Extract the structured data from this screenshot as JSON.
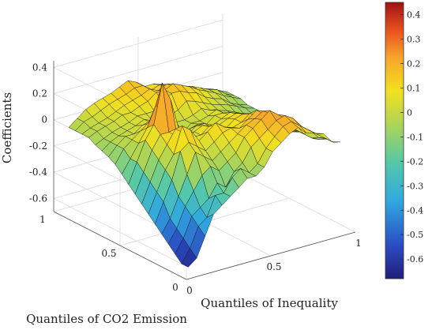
{
  "chart_data": {
    "type": "surface",
    "zlabel": "Coefficients",
    "xlabel": "Quantiles of Inequality",
    "ylabel": "Quantiles of CO2 Emission",
    "x_ticks": [
      "0",
      "0.5",
      "1"
    ],
    "y_ticks": [
      "0",
      "0.5",
      "1"
    ],
    "z_ticks": [
      "-0.6",
      "-0.4",
      "-0.2",
      "0",
      "0.2",
      "0.4"
    ],
    "zlim": [
      -0.7,
      0.45
    ],
    "colorbar": {
      "colormap": "jet",
      "range": [
        -0.68,
        0.45
      ],
      "ticks": [
        "0.4",
        "0.3",
        "0.2",
        "0.1",
        "0",
        "-0.1",
        "-0.2",
        "-0.3",
        "-0.4",
        "-0.5",
        "-0.6"
      ]
    },
    "grid": true,
    "x": [
      0.05,
      0.1,
      0.15,
      0.2,
      0.25,
      0.3,
      0.35,
      0.4,
      0.45,
      0.5,
      0.55,
      0.6,
      0.65,
      0.7,
      0.75,
      0.8,
      0.85,
      0.9,
      0.95
    ],
    "y": [
      0.05,
      0.1,
      0.15,
      0.2,
      0.25,
      0.3,
      0.35,
      0.4,
      0.45,
      0.5,
      0.55,
      0.6,
      0.65,
      0.7,
      0.75,
      0.8,
      0.85,
      0.9,
      0.95
    ],
    "z_note": "approximate surface values by row (y) over columns (x)",
    "z": [
      [
        -0.65,
        -0.6,
        -0.45,
        -0.3,
        -0.25,
        -0.2,
        -0.15,
        -0.1,
        -0.1,
        -0.05,
        0.05,
        0.1,
        0.15,
        0.18,
        0.12,
        0.1,
        0.08,
        0.0,
        -0.02
      ],
      [
        -0.65,
        -0.55,
        -0.4,
        -0.35,
        -0.2,
        -0.2,
        -0.1,
        -0.05,
        -0.1,
        -0.05,
        0.05,
        0.12,
        0.18,
        0.2,
        0.15,
        0.1,
        0.05,
        0.0,
        -0.05
      ],
      [
        -0.6,
        -0.5,
        -0.35,
        -0.3,
        -0.25,
        -0.15,
        -0.2,
        -0.1,
        -0.05,
        0.05,
        0.1,
        0.15,
        0.2,
        0.22,
        0.18,
        0.1,
        0.05,
        -0.02,
        -0.05
      ],
      [
        -0.55,
        -0.45,
        -0.3,
        -0.2,
        -0.1,
        -0.05,
        -0.1,
        -0.05,
        0.0,
        0.1,
        0.15,
        0.2,
        0.25,
        0.2,
        0.15,
        0.1,
        0.0,
        -0.05,
        -0.08
      ],
      [
        -0.5,
        -0.4,
        -0.25,
        -0.1,
        0.05,
        0.0,
        -0.05,
        0.0,
        0.05,
        0.1,
        0.15,
        0.18,
        0.22,
        0.18,
        0.12,
        0.08,
        0.0,
        -0.05,
        -0.1
      ],
      [
        -0.45,
        -0.3,
        -0.15,
        0.05,
        0.1,
        0.05,
        0.0,
        0.05,
        0.1,
        0.12,
        0.1,
        0.15,
        0.2,
        0.15,
        0.1,
        0.05,
        -0.02,
        -0.05,
        -0.1
      ],
      [
        -0.4,
        -0.25,
        -0.1,
        0.0,
        0.2,
        0.15,
        0.05,
        0.1,
        0.15,
        0.1,
        0.08,
        0.1,
        0.15,
        0.12,
        0.08,
        0.02,
        -0.05,
        -0.08,
        -0.1
      ],
      [
        -0.35,
        -0.2,
        -0.05,
        0.05,
        0.15,
        0.1,
        0.05,
        0.05,
        0.1,
        0.08,
        0.05,
        0.1,
        0.12,
        0.1,
        0.05,
        0.0,
        -0.05,
        -0.1,
        -0.12
      ],
      [
        -0.3,
        -0.15,
        0.0,
        0.1,
        0.1,
        0.05,
        0.0,
        0.05,
        0.08,
        0.05,
        0.05,
        0.08,
        0.1,
        0.08,
        0.02,
        0.0,
        -0.05,
        -0.1,
        -0.12
      ],
      [
        -0.25,
        -0.1,
        0.05,
        0.15,
        0.45,
        0.3,
        0.05,
        0.0,
        0.05,
        0.05,
        0.02,
        0.05,
        0.08,
        0.05,
        0.0,
        -0.02,
        -0.08,
        -0.1,
        -0.12
      ],
      [
        -0.2,
        -0.1,
        0.0,
        0.1,
        0.25,
        0.2,
        0.1,
        0.0,
        0.0,
        0.02,
        0.0,
        0.05,
        0.05,
        0.02,
        0.0,
        -0.05,
        -0.08,
        -0.1,
        -0.12
      ],
      [
        -0.15,
        -0.05,
        0.0,
        0.05,
        0.1,
        0.1,
        0.05,
        0.0,
        -0.05,
        0.0,
        0.0,
        0.02,
        0.05,
        0.0,
        -0.02,
        -0.05,
        -0.08,
        -0.1,
        -0.12
      ],
      [
        -0.12,
        -0.05,
        0.0,
        0.0,
        0.05,
        0.05,
        0.05,
        0.02,
        0.0,
        0.0,
        0.02,
        0.05,
        0.02,
        0.0,
        -0.02,
        -0.05,
        -0.08,
        -0.1,
        -0.1
      ],
      [
        -0.1,
        -0.05,
        -0.02,
        0.0,
        0.02,
        0.05,
        0.02,
        0.0,
        0.02,
        0.05,
        0.1,
        0.08,
        0.05,
        0.02,
        0.0,
        -0.02,
        -0.05,
        -0.08,
        -0.1
      ],
      [
        -0.08,
        -0.05,
        -0.02,
        0.0,
        0.02,
        0.05,
        0.05,
        0.05,
        0.1,
        0.15,
        0.15,
        0.12,
        0.1,
        0.05,
        0.02,
        0.0,
        -0.05,
        -0.08,
        -0.1
      ],
      [
        -0.05,
        -0.02,
        0.0,
        0.02,
        0.05,
        0.05,
        0.08,
        0.1,
        0.15,
        0.15,
        0.18,
        0.15,
        0.12,
        0.08,
        0.05,
        0.02,
        -0.02,
        -0.05,
        -0.08
      ],
      [
        -0.05,
        -0.02,
        0.0,
        0.02,
        0.05,
        0.08,
        0.1,
        0.12,
        0.15,
        0.12,
        0.15,
        0.12,
        0.1,
        0.08,
        0.05,
        0.02,
        0.0,
        -0.05,
        -0.08
      ],
      [
        -0.05,
        0.0,
        0.02,
        0.05,
        0.08,
        0.1,
        0.12,
        0.15,
        0.15,
        0.1,
        0.12,
        0.1,
        0.08,
        0.05,
        0.02,
        0.0,
        -0.02,
        -0.05,
        -0.08
      ],
      [
        -0.05,
        0.0,
        0.05,
        0.08,
        0.1,
        0.12,
        0.15,
        0.18,
        0.15,
        0.1,
        0.1,
        0.08,
        0.05,
        0.02,
        0.0,
        -0.02,
        -0.05,
        -0.08,
        -0.1
      ]
    ]
  }
}
